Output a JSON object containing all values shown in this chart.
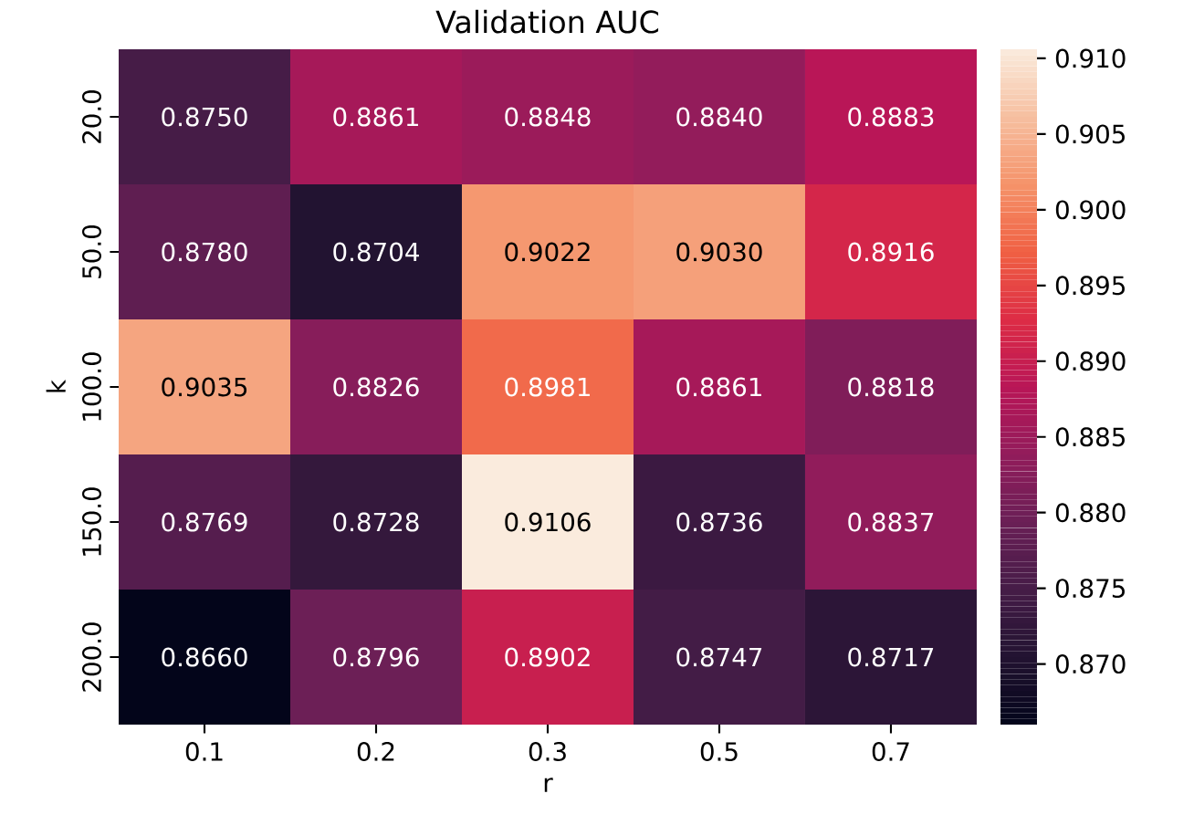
{
  "chart_data": {
    "type": "heatmap",
    "title": "Validation AUC",
    "xlabel": "r",
    "ylabel": "k",
    "categories": [
      "0.1",
      "0.2",
      "0.3",
      "0.5",
      "0.7"
    ],
    "y_categories": [
      "20.0",
      "50.0",
      "100.0",
      "150.0",
      "200.0"
    ],
    "cells": [
      [
        0.875,
        0.8861,
        0.8848,
        0.884,
        0.8883
      ],
      [
        0.878,
        0.8704,
        0.9022,
        0.903,
        0.8916
      ],
      [
        0.9035,
        0.8826,
        0.8981,
        0.8861,
        0.8818
      ],
      [
        0.8769,
        0.8728,
        0.9106,
        0.8736,
        0.8837
      ],
      [
        0.866,
        0.8796,
        0.8902,
        0.8747,
        0.8717
      ]
    ],
    "cell_labels": [
      [
        "0.8750",
        "0.8861",
        "0.8848",
        "0.8840",
        "0.8883"
      ],
      [
        "0.8780",
        "0.8704",
        "0.9022",
        "0.9030",
        "0.8916"
      ],
      [
        "0.9035",
        "0.8826",
        "0.8981",
        "0.8861",
        "0.8818"
      ],
      [
        "0.8769",
        "0.8728",
        "0.9106",
        "0.8736",
        "0.8837"
      ],
      [
        "0.8660",
        "0.8796",
        "0.8902",
        "0.8747",
        "0.8717"
      ]
    ],
    "clim": [
      0.866,
      0.9106
    ],
    "cticks": [
      {
        "value": 0.87,
        "label": "0.870"
      },
      {
        "value": 0.875,
        "label": "0.875"
      },
      {
        "value": 0.88,
        "label": "0.880"
      },
      {
        "value": 0.885,
        "label": "0.885"
      },
      {
        "value": 0.89,
        "label": "0.890"
      },
      {
        "value": 0.895,
        "label": "0.895"
      },
      {
        "value": 0.9,
        "label": "0.900"
      },
      {
        "value": 0.905,
        "label": "0.905"
      },
      {
        "value": 0.91,
        "label": "0.910"
      }
    ]
  }
}
